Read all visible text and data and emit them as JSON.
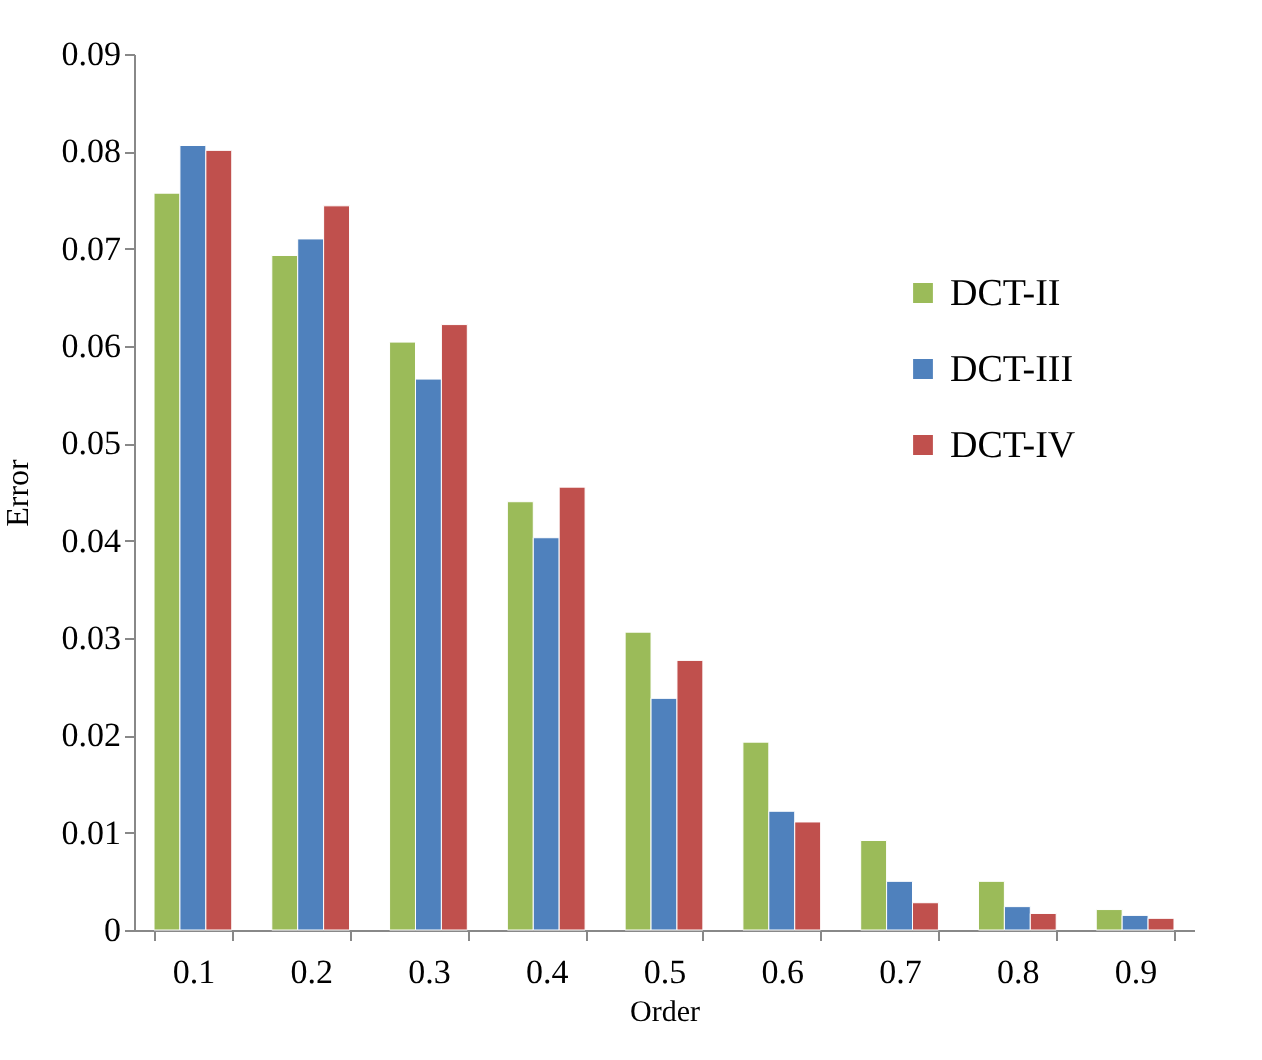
{
  "chart_data": {
    "type": "bar",
    "xlabel": "Order",
    "ylabel": "Error",
    "categories": [
      "0.1",
      "0.2",
      "0.3",
      "0.4",
      "0.5",
      "0.6",
      "0.7",
      "0.8",
      "0.9"
    ],
    "series": [
      {
        "name": "DCT-II",
        "color": "#9bbb59",
        "values": [
          0.0757,
          0.0693,
          0.0604,
          0.044,
          0.0306,
          0.0193,
          0.0092,
          0.005,
          0.0021
        ]
      },
      {
        "name": "DCT-III",
        "color": "#4f81bd",
        "values": [
          0.0806,
          0.071,
          0.0566,
          0.0403,
          0.0238,
          0.0122,
          0.005,
          0.0024,
          0.0015
        ]
      },
      {
        "name": "DCT-IV",
        "color": "#c0504d",
        "values": [
          0.0801,
          0.0744,
          0.0622,
          0.0455,
          0.0277,
          0.0111,
          0.0028,
          0.0017,
          0.0012
        ]
      }
    ],
    "ylim": [
      0,
      0.09
    ],
    "yticks": [
      0,
      0.01,
      0.02,
      0.03,
      0.04,
      0.05,
      0.06,
      0.07,
      0.08,
      0.09
    ],
    "grid": false,
    "legend": "right"
  }
}
